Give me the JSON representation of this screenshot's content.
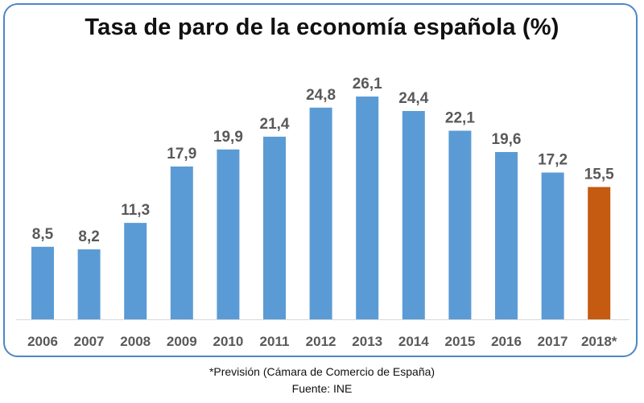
{
  "chart_data": {
    "type": "bar",
    "title": "Tasa de paro de la economía española (%)",
    "xlabel": "",
    "ylabel": "",
    "categories": [
      "2006",
      "2007",
      "2008",
      "2009",
      "2010",
      "2011",
      "2012",
      "2013",
      "2014",
      "2015",
      "2016",
      "2017",
      "2018*"
    ],
    "values": [
      8.5,
      8.2,
      11.3,
      17.9,
      19.9,
      21.4,
      24.8,
      26.1,
      24.4,
      22.1,
      19.6,
      17.2,
      15.5
    ],
    "data_labels": [
      "8,5",
      "8,2",
      "11,3",
      "17,9",
      "19,9",
      "21,4",
      "24,8",
      "26,1",
      "24,4",
      "22,1",
      "19,6",
      "17,2",
      "15,5"
    ],
    "bar_colors": [
      "#5b9bd5",
      "#5b9bd5",
      "#5b9bd5",
      "#5b9bd5",
      "#5b9bd5",
      "#5b9bd5",
      "#5b9bd5",
      "#5b9bd5",
      "#5b9bd5",
      "#5b9bd5",
      "#5b9bd5",
      "#5b9bd5",
      "#c55a11"
    ],
    "ylim": [
      0,
      26.1
    ],
    "grid": false,
    "legend": "none"
  },
  "footnote": "*Previsión (Cámara de Comercio de España)",
  "source": "Fuente: INE",
  "colors": {
    "frame_border": "#4f86c6",
    "axis_line": "#d9d9d9",
    "label_text": "#595959"
  }
}
